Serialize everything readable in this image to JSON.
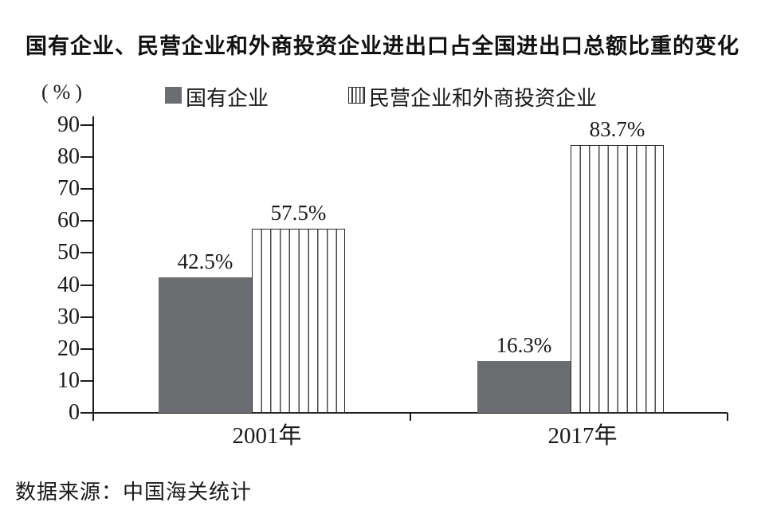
{
  "title": "国有企业、民营企业和外商投资企业进出口占全国进出口总额比重的变化",
  "source": "数据来源：中国海关统计",
  "colors": {
    "solid_bar": "#6b6d71",
    "axis": "#1c1c1c",
    "text": "#1a1a1a"
  },
  "chart_data": {
    "type": "bar",
    "title": "国有企业、民营企业和外商投资企业进出口占全国进出口总额比重的变化",
    "categories": [
      "2001年",
      "2017年"
    ],
    "series": [
      {
        "name": "国有企业",
        "style": "solid",
        "values": [
          42.5,
          16.3
        ],
        "data_labels": [
          "42.5%",
          "16.3%"
        ]
      },
      {
        "name": "民营企业和外商投资企业",
        "style": "striped",
        "values": [
          57.5,
          83.7
        ],
        "data_labels": [
          "57.5%",
          "83.7%"
        ]
      }
    ],
    "ylabel": "(%)",
    "ylim": [
      0,
      90
    ],
    "yticks": [
      0,
      10,
      20,
      30,
      40,
      50,
      60,
      70,
      80,
      90
    ],
    "grid": false,
    "legend_position": "top"
  }
}
